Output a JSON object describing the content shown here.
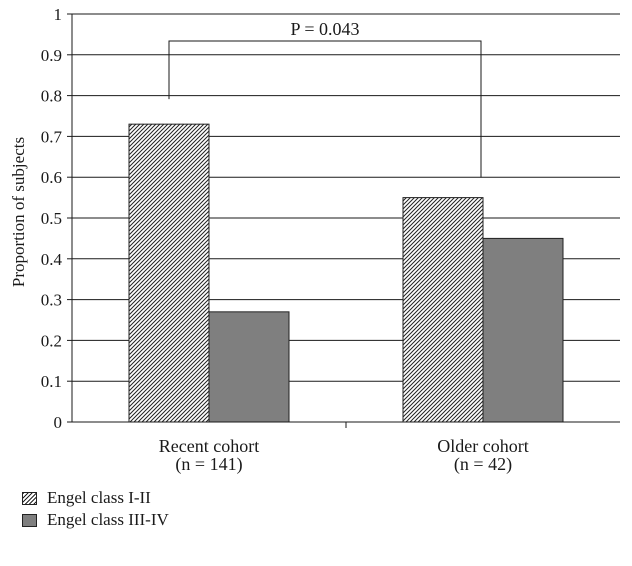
{
  "chart_data": {
    "type": "bar",
    "categories": [
      "Recent cohort",
      "Older cohort"
    ],
    "category_sublabels": [
      "(n = 141)",
      "(n = 42)"
    ],
    "series": [
      {
        "name": "Engel class I-II",
        "values": [
          0.73,
          0.55
        ],
        "fill": "hatched"
      },
      {
        "name": "Engel class III-IV",
        "values": [
          0.27,
          0.45
        ],
        "fill": "#7f7f7f"
      }
    ],
    "ylabel": "Proportion of subjects",
    "xlabel": "",
    "ylim": [
      0,
      1
    ],
    "yticks": [
      "0",
      "0.1",
      "0.2",
      "0.3",
      "0.4",
      "0.5",
      "0.6",
      "0.7",
      "0.8",
      "0.9",
      "1"
    ],
    "annotation": {
      "text": "P = 0.043",
      "compares": [
        "Recent cohort",
        "Older cohort"
      ],
      "series": "Engel class I-II"
    },
    "grid": true,
    "legend_position": "bottom-left"
  }
}
